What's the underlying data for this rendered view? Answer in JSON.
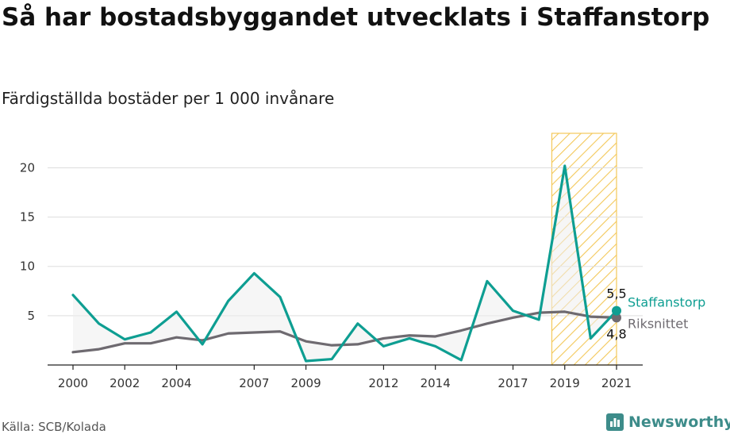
{
  "header": {
    "title": "Så har bostadsbyggandet utvecklats i Staffanstorp",
    "subtitle": "Färdigställda bostäder per 1 000 invånare"
  },
  "footer": {
    "source": "Källa: SCB/Kolada",
    "brand": "Newsworthy"
  },
  "colors": {
    "staffanstorp": "#0e9e92",
    "riksgenomsnitt": "#6e6a70",
    "highlight": "#f3c85a",
    "gridline": "#dddddd"
  },
  "chart_data": {
    "type": "line",
    "x": [
      2000,
      2001,
      2002,
      2003,
      2004,
      2005,
      2006,
      2007,
      2008,
      2009,
      2010,
      2011,
      2012,
      2013,
      2014,
      2015,
      2016,
      2017,
      2018,
      2019,
      2020,
      2021
    ],
    "series": [
      {
        "name": "Staffanstorp",
        "values": [
          7.1,
          4.2,
          2.6,
          3.3,
          5.4,
          2.1,
          6.5,
          9.3,
          6.9,
          0.4,
          0.6,
          4.2,
          1.9,
          2.7,
          1.9,
          0.5,
          8.5,
          5.5,
          4.6,
          20.2,
          2.7,
          5.5
        ],
        "end_label": "5,5"
      },
      {
        "name": "Riksnittet",
        "values": [
          1.3,
          1.6,
          2.2,
          2.2,
          2.8,
          2.5,
          3.2,
          3.3,
          3.4,
          2.4,
          2.0,
          2.1,
          2.7,
          3.0,
          2.9,
          3.5,
          4.2,
          4.8,
          5.3,
          5.4,
          4.9,
          4.8
        ],
        "end_label": "4,8"
      }
    ],
    "xticks": [
      "2000",
      "2002",
      "2004",
      "2007",
      "2009",
      "2012",
      "2014",
      "2017",
      "2019",
      "2021"
    ],
    "yticks": [
      "5",
      "10",
      "15",
      "20"
    ],
    "ylim": [
      0,
      23.5
    ],
    "highlight_range": [
      2018.5,
      2021
    ],
    "legend": "end-of-line labels",
    "grid": true
  }
}
